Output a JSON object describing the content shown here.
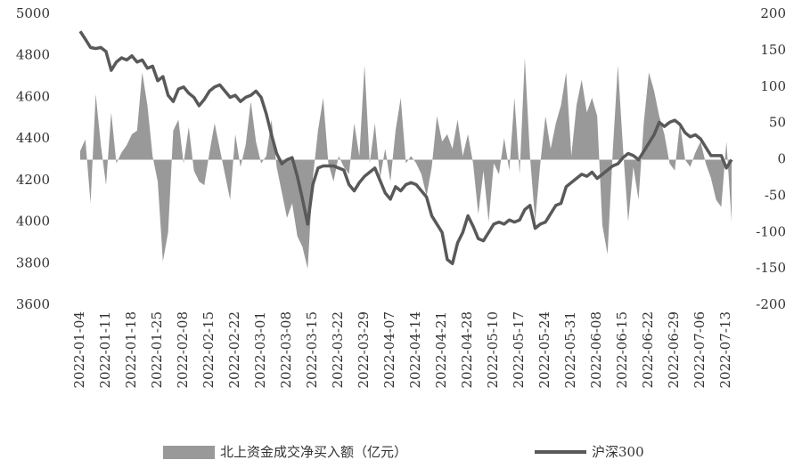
{
  "chart_data": {
    "type": "combo",
    "categories": [
      "2022-01-04",
      null,
      null,
      null,
      null,
      "2022-01-11",
      null,
      null,
      null,
      null,
      "2022-01-18",
      null,
      null,
      null,
      null,
      "2022-01-25",
      null,
      null,
      null,
      null,
      "2022-02-08",
      null,
      null,
      null,
      null,
      "2022-02-15",
      null,
      null,
      null,
      null,
      "2022-02-22",
      null,
      null,
      null,
      null,
      "2022-03-01",
      null,
      null,
      null,
      null,
      "2022-03-08",
      null,
      null,
      null,
      null,
      "2022-03-15",
      null,
      null,
      null,
      null,
      "2022-03-22",
      null,
      null,
      null,
      null,
      "2022-03-29",
      null,
      null,
      null,
      null,
      "2022-04-07",
      null,
      null,
      null,
      null,
      "2022-04-14",
      null,
      null,
      null,
      null,
      "2022-04-21",
      null,
      null,
      null,
      null,
      "2022-04-28",
      null,
      null,
      null,
      null,
      "2022-05-10",
      null,
      null,
      null,
      null,
      "2022-05-17",
      null,
      null,
      null,
      null,
      "2022-05-24",
      null,
      null,
      null,
      null,
      "2022-05-31",
      null,
      null,
      null,
      null,
      "2022-06-08",
      null,
      null,
      null,
      null,
      "2022-06-15",
      null,
      null,
      null,
      null,
      "2022-06-22",
      null,
      null,
      null,
      null,
      "2022-06-29",
      null,
      null,
      null,
      null,
      "2022-07-06",
      null,
      null,
      null,
      null,
      "2022-07-13",
      null
    ],
    "series": [
      {
        "name": "北上资金成交净买入额（亿元）",
        "type": "area",
        "axis": "y2",
        "color": "#999999",
        "values": [
          12,
          28,
          -60,
          90,
          20,
          -35,
          65,
          -5,
          10,
          20,
          35,
          40,
          120,
          75,
          5,
          -30,
          -140,
          -100,
          40,
          55,
          -5,
          45,
          -15,
          -30,
          -35,
          10,
          50,
          15,
          -20,
          -55,
          35,
          -10,
          20,
          80,
          25,
          -5,
          5,
          55,
          -10,
          -45,
          -80,
          -60,
          -105,
          -120,
          -150,
          -25,
          40,
          85,
          -5,
          -30,
          5,
          -10,
          -20,
          50,
          5,
          130,
          -5,
          50,
          -25,
          15,
          -30,
          40,
          85,
          -5,
          5,
          -5,
          -20,
          -50,
          -10,
          60,
          25,
          35,
          15,
          55,
          5,
          35,
          -5,
          -75,
          -15,
          -85,
          -5,
          -20,
          30,
          -15,
          85,
          -20,
          140,
          5,
          -85,
          -5,
          60,
          15,
          50,
          75,
          120,
          5,
          75,
          110,
          65,
          85,
          60,
          -90,
          -130,
          10,
          130,
          15,
          -85,
          -10,
          -55,
          50,
          120,
          95,
          60,
          35,
          -5,
          -15,
          50,
          0,
          -10,
          10,
          25,
          -5,
          -25,
          -55,
          -65,
          25,
          -85
        ]
      },
      {
        "name": "沪深300",
        "type": "line",
        "color": "#595959",
        "values": [
          4918,
          4880,
          4840,
          4835,
          4840,
          4820,
          4730,
          4770,
          4790,
          4780,
          4800,
          4770,
          4780,
          4740,
          4750,
          4680,
          4700,
          4610,
          4580,
          4640,
          4650,
          4620,
          4600,
          4560,
          4590,
          4630,
          4650,
          4660,
          4630,
          4600,
          4610,
          4580,
          4600,
          4610,
          4630,
          4600,
          4520,
          4420,
          4330,
          4280,
          4300,
          4310,
          4220,
          4110,
          3990,
          4180,
          4260,
          4270,
          4270,
          4270,
          4260,
          4250,
          4180,
          4150,
          4190,
          4220,
          4240,
          4260,
          4200,
          4140,
          4110,
          4170,
          4150,
          4180,
          4190,
          4180,
          4150,
          4120,
          4030,
          3990,
          3950,
          3820,
          3800,
          3900,
          3950,
          4030,
          3980,
          3920,
          3910,
          3950,
          3990,
          4000,
          3990,
          4010,
          4000,
          4010,
          4060,
          4080,
          3970,
          3990,
          4000,
          4040,
          4080,
          4090,
          4170,
          4190,
          4210,
          4230,
          4220,
          4240,
          4210,
          4230,
          4250,
          4270,
          4280,
          4310,
          4330,
          4320,
          4300,
          4340,
          4380,
          4420,
          4480,
          4460,
          4480,
          4490,
          4470,
          4430,
          4410,
          4420,
          4400,
          4360,
          4320,
          4320,
          4320,
          4260,
          4300
        ]
      }
    ],
    "ylim": [
      3600,
      5000
    ],
    "yticks": [
      3600,
      3800,
      4000,
      4200,
      4400,
      4600,
      4800,
      5000
    ],
    "y2lim": [
      -200,
      200
    ],
    "y2ticks": [
      -200,
      -150,
      -100,
      -50,
      0,
      50,
      100,
      150,
      200
    ],
    "grid": false
  }
}
